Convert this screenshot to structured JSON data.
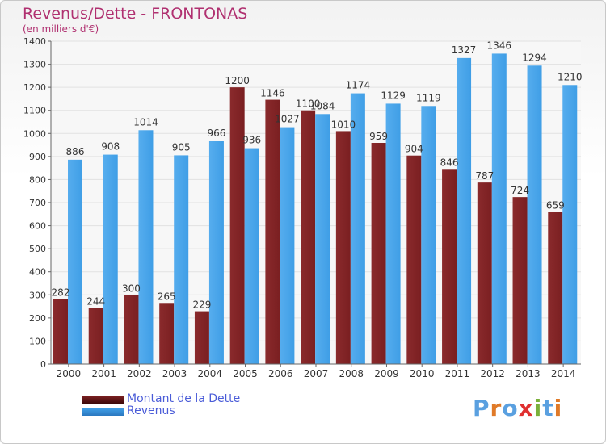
{
  "header": {
    "title": "Revenus/Dette - FRONTONAS",
    "subtitle": "(en milliers d'€)"
  },
  "legend": {
    "items": [
      {
        "label": "Montant de la Dette"
      },
      {
        "label": "Revenus"
      }
    ]
  },
  "logo": {
    "text": "Proxiti"
  },
  "colors": {
    "debt": "#7a1f21",
    "revenue": "#3f9ee6",
    "title": "#b03070",
    "legend_text": "#4a5cd8",
    "logo_letters": [
      "#5aa0e0",
      "#e07a28",
      "#5aa0e0",
      "#e03030",
      "#7ab03a",
      "#5aa0e0",
      "#e07a28"
    ]
  },
  "chart_data": {
    "type": "bar",
    "categories": [
      "2000",
      "2001",
      "2002",
      "2003",
      "2004",
      "2005",
      "2006",
      "2007",
      "2008",
      "2009",
      "2010",
      "2011",
      "2012",
      "2013",
      "2014"
    ],
    "series": [
      {
        "name": "Montant de la Dette",
        "values": [
          282,
          244,
          300,
          265,
          229,
          1200,
          1146,
          1100,
          1010,
          959,
          904,
          846,
          787,
          724,
          659
        ]
      },
      {
        "name": "Revenus",
        "values": [
          886,
          908,
          1014,
          905,
          966,
          936,
          1027,
          1084,
          1174,
          1129,
          1119,
          1327,
          1346,
          1294,
          1210
        ]
      }
    ],
    "ylim": [
      0,
      1400
    ],
    "yticks": [
      0,
      100,
      200,
      300,
      400,
      500,
      600,
      700,
      800,
      900,
      1000,
      1100,
      1200,
      1300,
      1400
    ],
    "grid": true,
    "legend_position": "bottom-left"
  }
}
